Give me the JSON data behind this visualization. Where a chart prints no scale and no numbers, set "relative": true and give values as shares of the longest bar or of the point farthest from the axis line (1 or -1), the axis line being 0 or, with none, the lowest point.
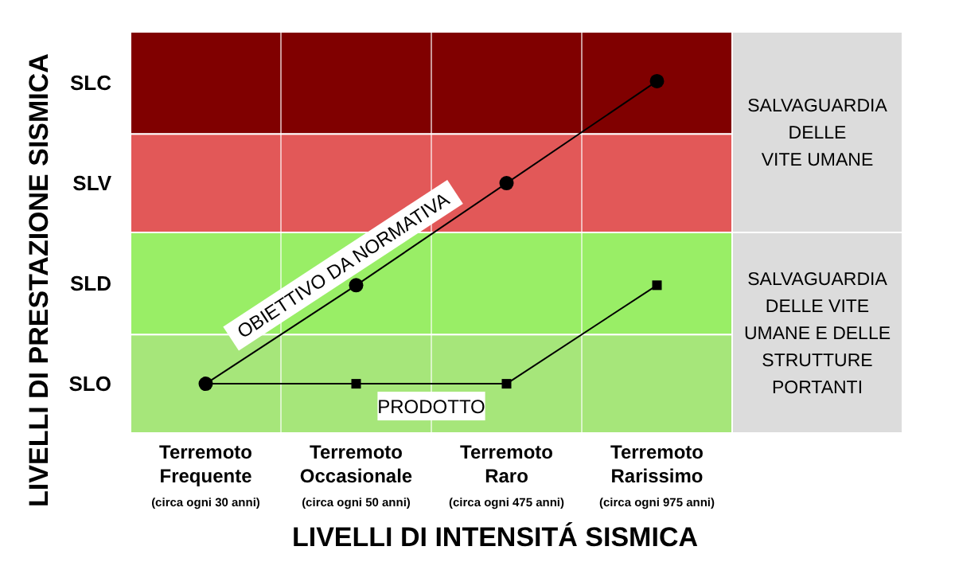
{
  "chart_data": {
    "type": "line",
    "relative": true,
    "xlabel": "LIVELLI DI INTENSITÁ SISMICA",
    "ylabel": "LIVELLI DI PRESTAZIONE SISMICA",
    "categories": [
      "Terremoto\nFrequente\n(circa ogni 30 anni)",
      "Terremoto\nOccasionale\n(circa ogni 50 anni)",
      "Terremoto\nRaro\n(circa ogni 475 anni)",
      "Terremoto\nRarissimo\n(circa ogni 975 anni)"
    ],
    "grid": "x",
    "annotations": [
      "SLO",
      "SLD",
      "SLV",
      "SLC"
    ],
    "bands": [
      {
        "axis": "y",
        "from": 0.57,
        "to": 1.14,
        "color": "#dcdcdc",
        "label": "SALVAGUARDIA\nDELLE\nVITE UMANE"
      },
      {
        "axis": "y",
        "from": 0,
        "to": 0.57,
        "color": "#dcdcdc",
        "label": "SALVAGUARDIA\nDELLE VITE\nUMANE E DELLE\nSTRUTTURE\nPORTANTI"
      },
      {
        "axis": "y",
        "from": 0,
        "to": 0.28,
        "color": "#a6e67a"
      },
      {
        "axis": "y",
        "from": 0.28,
        "to": 0.57,
        "color": "#99ee66"
      },
      {
        "axis": "y",
        "from": 0.57,
        "to": 0.85,
        "color": "#e25858"
      },
      {
        "axis": "y",
        "from": 0.85,
        "to": 1.14,
        "color": "#800000"
      }
    ],
    "series": [
      {
        "name": "OBIETTIVO DA NORMATIVA",
        "color": "#000000",
        "marker": "circle",
        "values": [
          0.14,
          0.42,
          0.71,
          1
        ]
      },
      {
        "name": "PRODOTTO",
        "color": "#000000",
        "marker": "square",
        "values": [
          0.14,
          0.14,
          0.14,
          0.42
        ]
      }
    ]
  }
}
